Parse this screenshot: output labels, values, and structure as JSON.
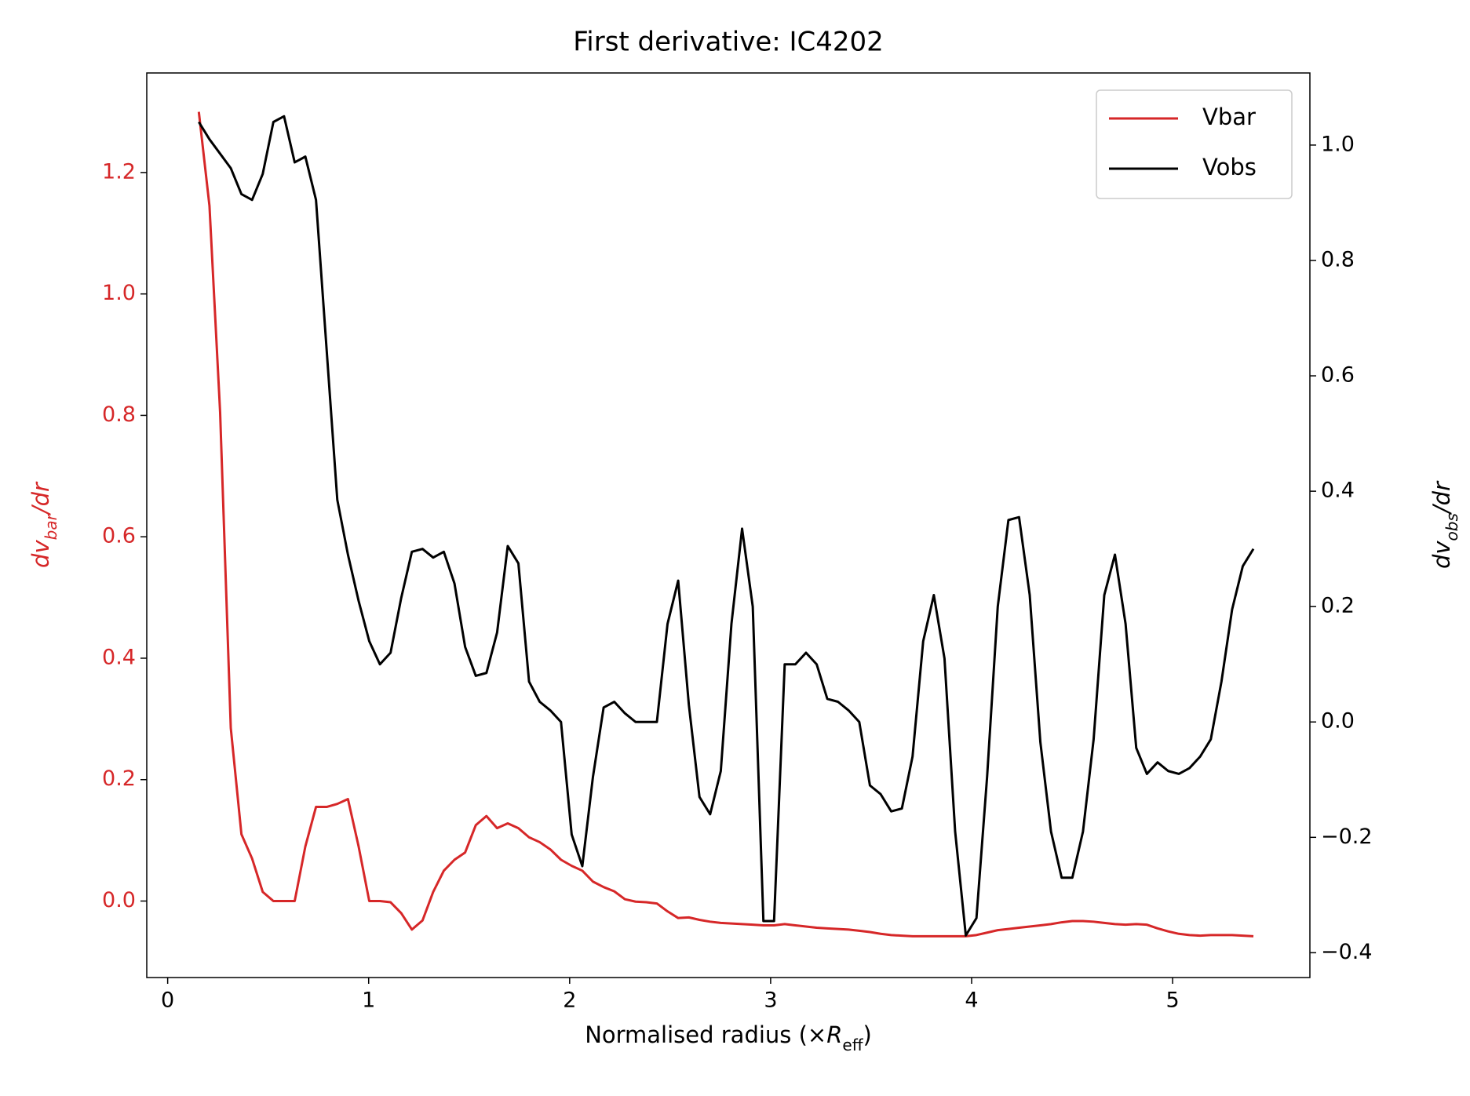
{
  "chart_data": {
    "type": "line",
    "title": "First derivative: IC4202",
    "x_label_parts": [
      "Normalised radius (×",
      "R",
      "eff",
      ")"
    ],
    "y_label_parts": [
      "dv",
      "bar",
      "/dr"
    ],
    "y2_label_parts": [
      "dv",
      "obs",
      "/dr"
    ],
    "y_axis_color": "#d62728",
    "legend": "upper right",
    "xlim": [
      -0.104,
      5.683
    ],
    "ylim": [
      -0.126,
      1.364
    ],
    "y2lim": [
      -0.443,
      1.125
    ],
    "xticks": [
      0,
      1,
      2,
      3,
      4,
      5
    ],
    "yticks": [
      {
        "value": 0,
        "label": "0.0"
      },
      0.2,
      0.4,
      0.6,
      0.8,
      {
        "value": 1,
        "label": "1.0"
      },
      1.2
    ],
    "y2ticks": [
      {
        "value": -0.4,
        "label": "−0.4"
      },
      {
        "value": -0.2,
        "label": "−0.2"
      },
      {
        "value": 0,
        "label": "0.0"
      },
      0.2,
      0.4,
      0.6,
      0.8,
      {
        "value": 1,
        "label": "1.0"
      }
    ],
    "x": [
      0.155,
      0.208,
      0.261,
      0.314,
      0.367,
      0.42,
      0.473,
      0.526,
      0.579,
      0.632,
      0.685,
      0.738,
      0.791,
      0.844,
      0.897,
      0.95,
      1.003,
      1.056,
      1.109,
      1.162,
      1.215,
      1.268,
      1.321,
      1.374,
      1.427,
      1.48,
      1.533,
      1.586,
      1.639,
      1.692,
      1.745,
      1.798,
      1.851,
      1.904,
      1.957,
      2.01,
      2.063,
      2.116,
      2.169,
      2.222,
      2.275,
      2.328,
      2.381,
      2.434,
      2.487,
      2.54,
      2.593,
      2.646,
      2.699,
      2.752,
      2.805,
      2.858,
      2.911,
      2.964,
      3.017,
      3.07,
      3.123,
      3.176,
      3.229,
      3.282,
      3.335,
      3.388,
      3.441,
      3.494,
      3.547,
      3.6,
      3.653,
      3.706,
      3.759,
      3.812,
      3.865,
      3.918,
      3.971,
      4.024,
      4.077,
      4.13,
      4.183,
      4.236,
      4.289,
      4.342,
      4.395,
      4.448,
      4.501,
      4.554,
      4.607,
      4.66,
      4.713,
      4.766,
      4.819,
      4.872,
      4.925,
      4.978,
      5.031,
      5.084,
      5.137,
      5.19,
      5.243,
      5.296,
      5.349,
      5.402
    ],
    "series": [
      {
        "name": "Vbar",
        "color": "#d62728",
        "axis": "y",
        "values": [
          1.3,
          1.145,
          0.805,
          0.285,
          0.11,
          0.07,
          0.015,
          0.0,
          0.0,
          0.0,
          0.09,
          0.155,
          0.155,
          0.16,
          0.168,
          0.09,
          0.0,
          0.0,
          -0.002,
          -0.02,
          -0.047,
          -0.032,
          0.015,
          0.05,
          0.068,
          0.08,
          0.125,
          0.14,
          0.12,
          0.128,
          0.12,
          0.105,
          0.097,
          0.085,
          0.068,
          0.058,
          0.05,
          0.032,
          0.023,
          0.016,
          0.003,
          -0.001,
          -0.002,
          -0.004,
          -0.017,
          -0.028,
          -0.027,
          -0.031,
          -0.034,
          -0.036,
          -0.037,
          -0.038,
          -0.039,
          -0.04,
          -0.04,
          -0.038,
          -0.04,
          -0.042,
          -0.044,
          -0.045,
          -0.046,
          -0.047,
          -0.049,
          -0.051,
          -0.054,
          -0.056,
          -0.057,
          -0.058,
          -0.058,
          -0.058,
          -0.058,
          -0.058,
          -0.058,
          -0.056,
          -0.052,
          -0.048,
          -0.046,
          -0.044,
          -0.042,
          -0.04,
          -0.038,
          -0.035,
          -0.033,
          -0.033,
          -0.034,
          -0.036,
          -0.038,
          -0.039,
          -0.038,
          -0.039,
          -0.045,
          -0.05,
          -0.054,
          -0.056,
          -0.057,
          -0.056,
          -0.056,
          -0.056,
          -0.057,
          -0.058
        ]
      },
      {
        "name": "Vobs",
        "color": "#000000",
        "axis": "y2",
        "values": [
          1.04,
          1.01,
          0.985,
          0.96,
          0.915,
          0.905,
          0.95,
          1.04,
          1.05,
          0.97,
          0.98,
          0.905,
          0.645,
          0.385,
          0.29,
          0.21,
          0.14,
          0.1,
          0.12,
          0.215,
          0.295,
          0.3,
          0.285,
          0.295,
          0.24,
          0.13,
          0.08,
          0.085,
          0.155,
          0.305,
          0.275,
          0.07,
          0.035,
          0.02,
          0.0,
          -0.195,
          -0.25,
          -0.095,
          0.025,
          0.035,
          0.015,
          0.0,
          0.0,
          0.0,
          0.17,
          0.245,
          0.03,
          -0.13,
          -0.16,
          -0.085,
          0.17,
          0.335,
          0.2,
          -0.345,
          -0.345,
          0.1,
          0.1,
          0.12,
          0.1,
          0.04,
          0.035,
          0.02,
          0.0,
          -0.11,
          -0.125,
          -0.155,
          -0.15,
          -0.06,
          0.14,
          0.22,
          0.11,
          -0.19,
          -0.37,
          -0.34,
          -0.095,
          0.2,
          0.35,
          0.355,
          0.22,
          -0.035,
          -0.19,
          -0.27,
          -0.27,
          -0.19,
          -0.03,
          0.22,
          0.29,
          0.17,
          -0.045,
          -0.09,
          -0.07,
          -0.085,
          -0.09,
          -0.08,
          -0.06,
          -0.03,
          0.07,
          0.195,
          0.27,
          0.3
        ]
      }
    ]
  }
}
